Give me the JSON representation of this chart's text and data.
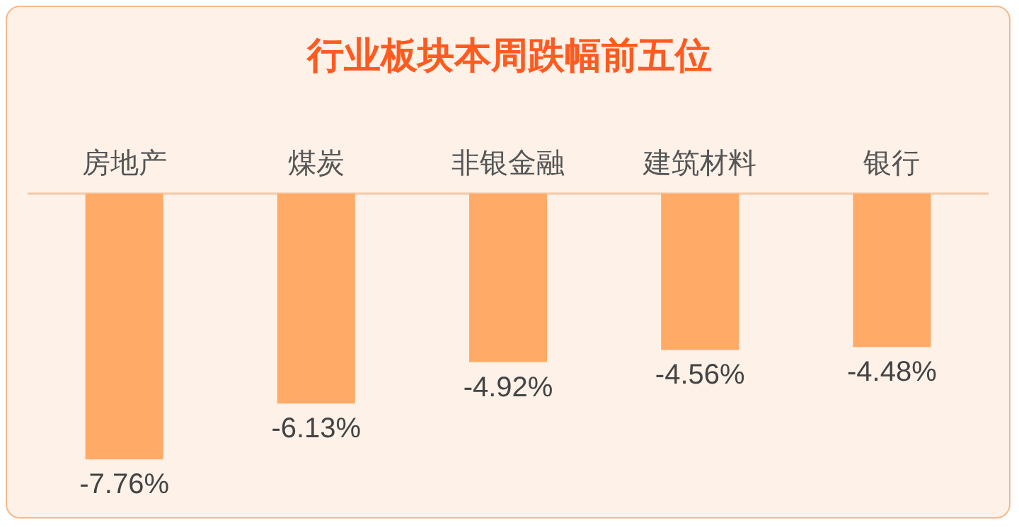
{
  "chart_data": {
    "type": "bar",
    "title": "行业板块本周跌幅前五位",
    "categories": [
      "房地产",
      "煤炭",
      "非银金融",
      "建筑材料",
      "银行"
    ],
    "values": [
      -7.76,
      -6.13,
      -4.92,
      -4.56,
      -4.48
    ],
    "value_labels": [
      "-7.76%",
      "-6.13%",
      "-4.92%",
      "-4.56%",
      "-4.48%"
    ],
    "color": "#ffaa66"
  }
}
